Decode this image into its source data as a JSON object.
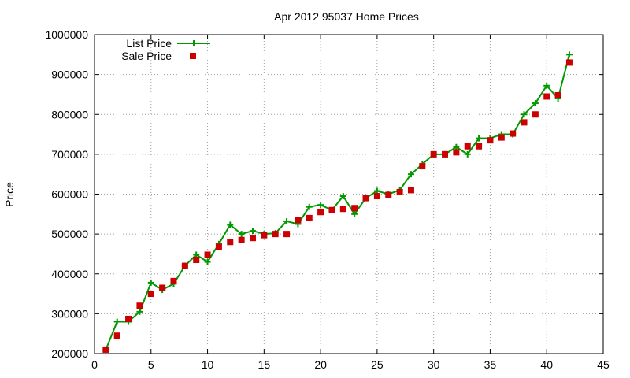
{
  "chart_data": {
    "type": "line",
    "title": "Apr 2012 95037 Home Prices",
    "xlabel": "",
    "ylabel": "Price",
    "xlim": [
      0,
      45
    ],
    "ylim": [
      200000,
      1000000
    ],
    "x_ticks": [
      0,
      5,
      10,
      15,
      20,
      25,
      30,
      35,
      40,
      45
    ],
    "y_ticks": [
      200000,
      300000,
      400000,
      500000,
      600000,
      700000,
      800000,
      900000,
      1000000
    ],
    "grid": true,
    "legend_position": "top-left",
    "series": [
      {
        "name": "List Price",
        "style": "line-with-plus-markers",
        "color": "#009900",
        "x": [
          1,
          2,
          3,
          4,
          5,
          6,
          7,
          8,
          9,
          10,
          11,
          12,
          13,
          14,
          15,
          16,
          17,
          18,
          19,
          20,
          21,
          22,
          23,
          24,
          25,
          26,
          27,
          28,
          29,
          30,
          31,
          32,
          33,
          34,
          35,
          36,
          37,
          38,
          39,
          40,
          41,
          42
        ],
        "values": [
          210000,
          280000,
          280000,
          305000,
          378000,
          360000,
          375000,
          420000,
          448000,
          430000,
          475000,
          523000,
          500000,
          508000,
          500000,
          502000,
          532000,
          525000,
          568000,
          573000,
          560000,
          595000,
          550000,
          590000,
          608000,
          600000,
          610000,
          650000,
          675000,
          700000,
          700000,
          718000,
          700000,
          740000,
          740000,
          750000,
          750000,
          800000,
          828000,
          872000,
          840000,
          950000
        ]
      },
      {
        "name": "Sale Price",
        "style": "square-markers",
        "color": "#cc0000",
        "x": [
          1,
          2,
          3,
          4,
          5,
          6,
          7,
          8,
          9,
          10,
          11,
          12,
          13,
          14,
          15,
          16,
          17,
          18,
          19,
          20,
          21,
          22,
          23,
          24,
          25,
          26,
          27,
          28,
          29,
          30,
          31,
          32,
          33,
          34,
          35,
          36,
          37,
          38,
          39,
          40,
          41,
          42
        ],
        "values": [
          210000,
          245000,
          287000,
          320000,
          350000,
          365000,
          382000,
          420000,
          435000,
          448000,
          468000,
          480000,
          485000,
          490000,
          497000,
          500000,
          500000,
          535000,
          540000,
          555000,
          560000,
          563000,
          565000,
          590000,
          595000,
          598000,
          605000,
          610000,
          670000,
          700000,
          700000,
          705000,
          720000,
          720000,
          735000,
          742000,
          752000,
          780000,
          800000,
          845000,
          848000,
          930000
        ]
      }
    ]
  }
}
